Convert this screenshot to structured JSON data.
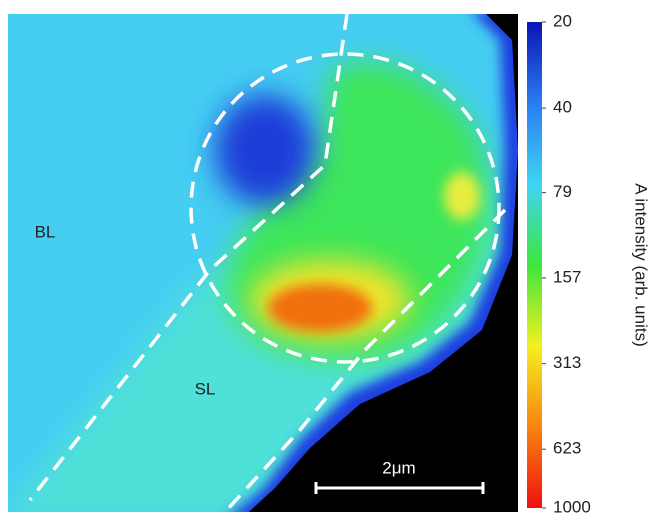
{
  "chart_data": {
    "type": "intensity-map",
    "region_labels": [
      "BL",
      "SL"
    ],
    "scale_bar_label": "2μm",
    "colorbar": {
      "label": "A intensity (arb. units)",
      "log": true,
      "lim": [
        20,
        1000
      ],
      "ticks": [
        20,
        40,
        79,
        157,
        313,
        623,
        1000
      ],
      "colors": [
        "#0a14b4",
        "#2a7cf0",
        "#3fd4f4",
        "#3ee63c",
        "#f4f020",
        "#f88410",
        "#f01010"
      ]
    }
  }
}
